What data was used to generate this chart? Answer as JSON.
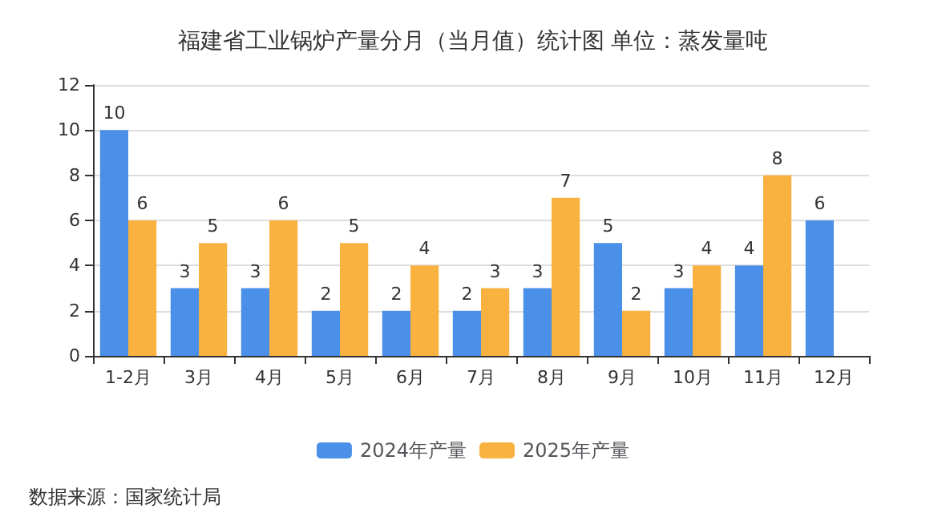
{
  "chart_data": {
    "type": "bar",
    "title": "福建省工业锅炉产量分月（当月值）统计图 单位：蒸发量吨",
    "categories": [
      "1-2月",
      "3月",
      "4月",
      "5月",
      "6月",
      "7月",
      "8月",
      "9月",
      "10月",
      "11月",
      "12月"
    ],
    "series": [
      {
        "name": "2024年产量",
        "color": "#4a8fe8",
        "values": [
          10,
          3,
          3,
          2,
          2,
          2,
          3,
          5,
          3,
          4,
          6
        ]
      },
      {
        "name": "2025年产量",
        "color": "#f9b13f",
        "values": [
          6,
          5,
          6,
          5,
          4,
          3,
          7,
          2,
          4,
          8,
          null
        ]
      }
    ],
    "ylim": [
      0,
      12
    ],
    "yticks": [
      0,
      2,
      4,
      6,
      8,
      10,
      12
    ],
    "grid": "y",
    "legend": "bottom",
    "data_labels": true,
    "annotations": [
      "数据来源：国家统计局"
    ]
  }
}
